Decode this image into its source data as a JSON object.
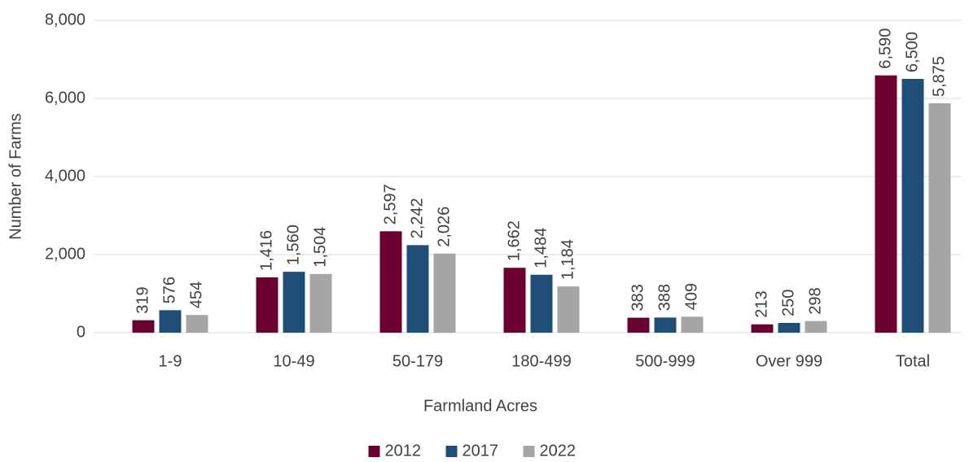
{
  "chart_data": {
    "type": "bar",
    "categories": [
      "1-9",
      "10-49",
      "50-179",
      "180-499",
      "500-999",
      "Over 999",
      "Total"
    ],
    "series": [
      {
        "name": "2012",
        "color": "#6b0031",
        "values": [
          319,
          1416,
          2597,
          1662,
          383,
          213,
          6590
        ],
        "value_labels": [
          "319",
          "1,416",
          "2,597",
          "1,662",
          "383",
          "213",
          "6,590"
        ]
      },
      {
        "name": "2017",
        "color": "#1f4e79",
        "values": [
          576,
          1560,
          2242,
          1484,
          388,
          250,
          6500
        ],
        "value_labels": [
          "576",
          "1,560",
          "2,242",
          "1,484",
          "388",
          "250",
          "6,500"
        ]
      },
      {
        "name": "2022",
        "color": "#a5a5a5",
        "values": [
          454,
          1504,
          2026,
          1184,
          409,
          298,
          5875
        ],
        "value_labels": [
          "454",
          "1,504",
          "2,026",
          "1,184",
          "409",
          "298",
          "5,875"
        ]
      }
    ],
    "x_label": "Farmland Acres",
    "y_label": "Number of Farms",
    "ylim": [
      0,
      8000
    ],
    "yticks": [
      0,
      {
        "value": 2000,
        "label": "2,000"
      },
      {
        "value": 4000,
        "label": "4,000"
      },
      {
        "value": 6000,
        "label": "6,000"
      },
      {
        "value": 8000,
        "label": "8,000"
      }
    ],
    "grid": true,
    "legend": "bottom"
  }
}
